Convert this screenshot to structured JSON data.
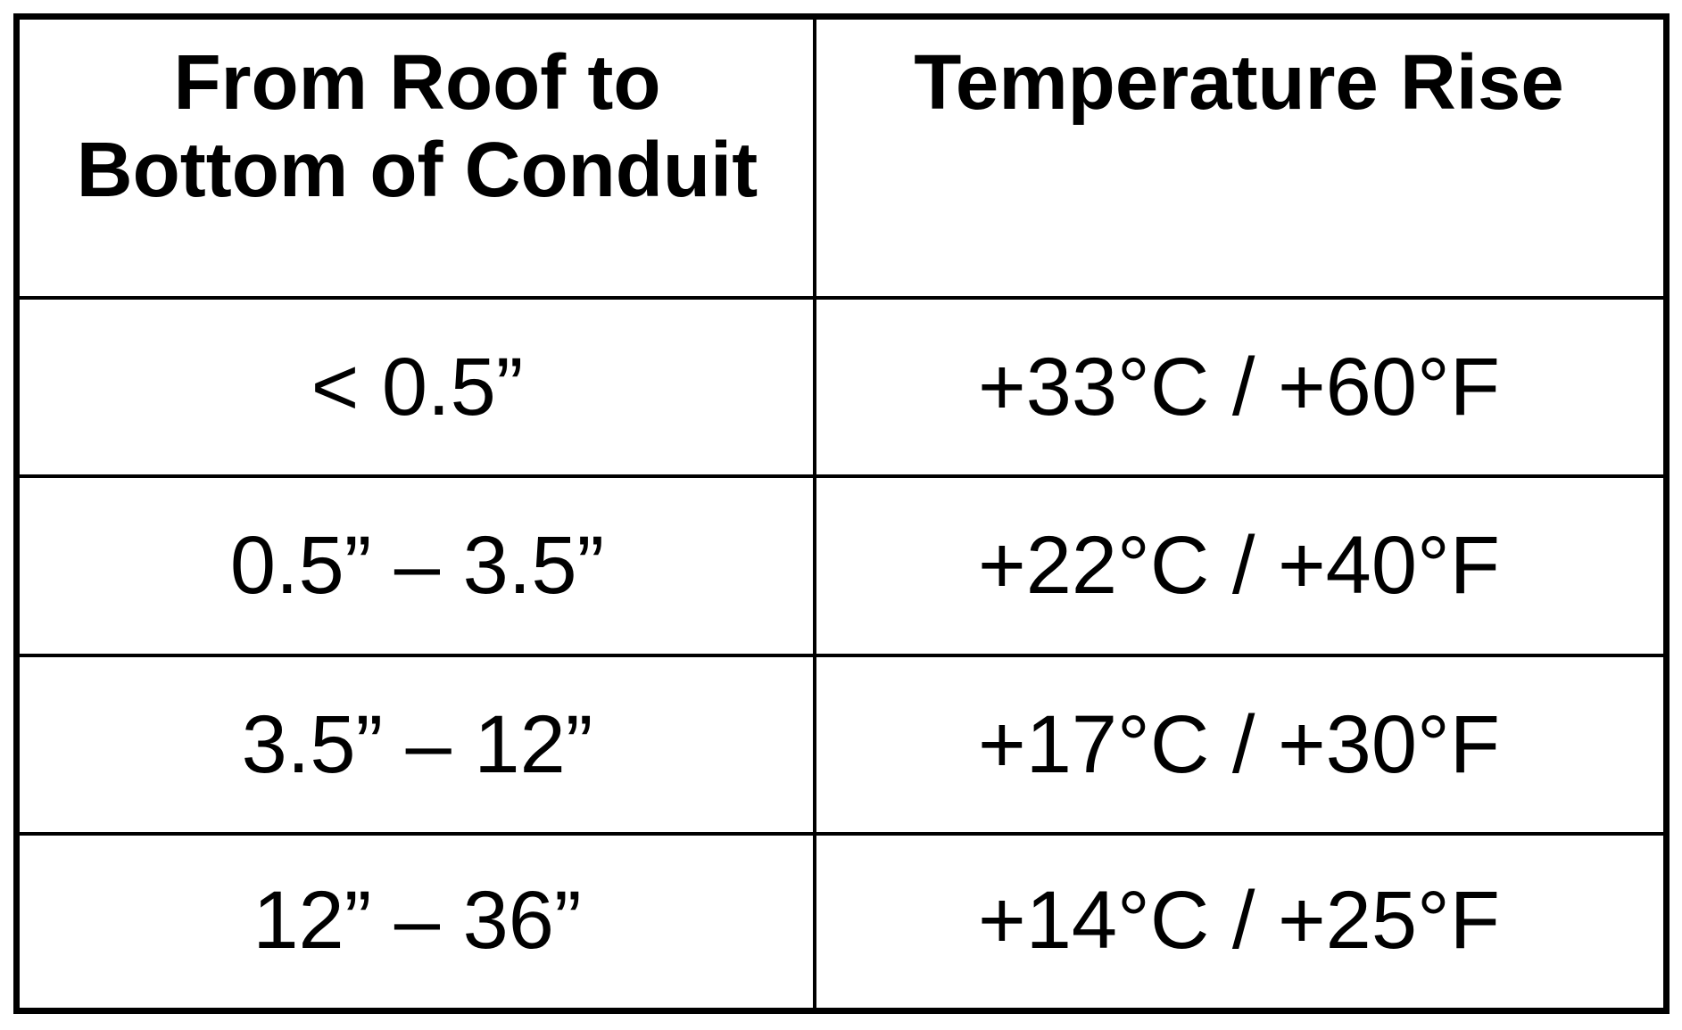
{
  "table": {
    "header": [
      "From Roof to Bottom of Conduit",
      "Temperature Rise"
    ],
    "rows": [
      [
        "< 0.5”",
        "+33°C / +60°F"
      ],
      [
        "0.5” – 3.5”",
        "+22°C / +40°F"
      ],
      [
        "3.5” – 12”",
        "+17°C / +30°F"
      ],
      [
        "12” – 36”",
        "+14°C / +25°F"
      ]
    ]
  }
}
